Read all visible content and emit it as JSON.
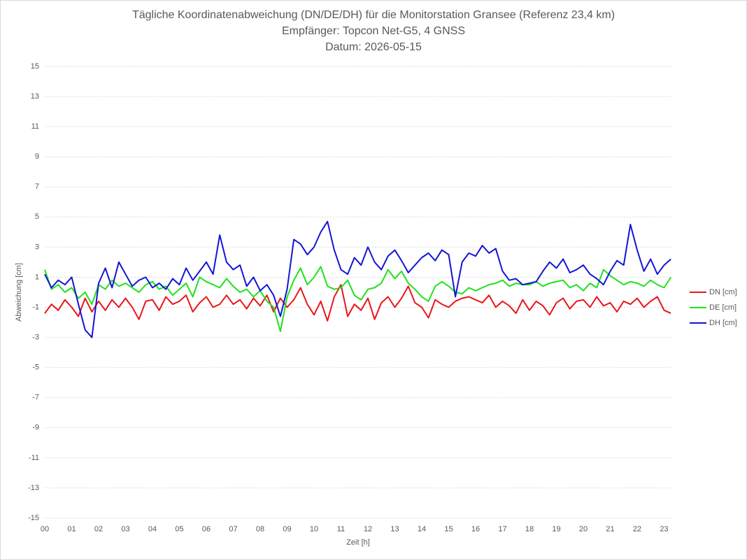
{
  "chart_data": {
    "type": "line",
    "title_lines": [
      "Tägliche Koordinatenabweichung (DN/DE/DH) für die Monitorstation Gransee (Referenz 23,4 km)",
      "Empfänger: Topcon Net-G5, 4 GNSS",
      "Datum: 2026-05-15"
    ],
    "x_label": "Zeit [h]",
    "y_label": "Abweichung [cm]",
    "x": [
      0,
      0.25,
      0.5,
      0.75,
      1,
      1.25,
      1.5,
      1.75,
      2,
      2.25,
      2.5,
      2.75,
      3,
      3.25,
      3.5,
      3.75,
      4,
      4.25,
      4.5,
      4.75,
      5,
      5.25,
      5.5,
      5.75,
      6,
      6.25,
      6.5,
      6.75,
      7,
      7.25,
      7.5,
      7.75,
      8,
      8.25,
      8.5,
      8.75,
      9,
      9.25,
      9.5,
      9.75,
      10,
      10.25,
      10.5,
      10.75,
      11,
      11.25,
      11.5,
      11.75,
      12,
      12.25,
      12.5,
      12.75,
      13,
      13.25,
      13.5,
      13.75,
      14,
      14.25,
      14.5,
      14.75,
      15,
      15.25,
      15.5,
      15.75,
      16,
      16.25,
      16.5,
      16.75,
      17,
      17.25,
      17.5,
      17.75,
      18,
      18.25,
      18.5,
      18.75,
      19,
      19.25,
      19.5,
      19.75,
      20,
      20.25,
      20.5,
      20.75,
      21,
      21.25,
      21.5,
      21.75,
      22,
      22.25,
      22.5,
      22.75,
      23,
      23.25
    ],
    "series": [
      {
        "name": "DN [cm]",
        "color": "#e8161b",
        "values": [
          -1.4,
          -0.8,
          -1.2,
          -0.5,
          -1.0,
          -1.6,
          -0.4,
          -1.3,
          -0.6,
          -1.2,
          -0.5,
          -1.0,
          -0.4,
          -1.0,
          -1.8,
          -0.6,
          -0.5,
          -1.2,
          -0.3,
          -0.8,
          -0.6,
          -0.2,
          -1.3,
          -0.7,
          -0.3,
          -1.0,
          -0.8,
          -0.2,
          -0.8,
          -0.5,
          -1.1,
          -0.4,
          -0.9,
          -0.2,
          -1.3,
          -0.4,
          -1.0,
          -0.5,
          0.3,
          -0.8,
          -1.5,
          -0.6,
          -1.9,
          -0.3,
          0.5,
          -1.6,
          -0.8,
          -1.2,
          -0.4,
          -1.8,
          -0.7,
          -0.3,
          -1.0,
          -0.4,
          0.4,
          -0.7,
          -1.0,
          -1.7,
          -0.5,
          -0.8,
          -1.0,
          -0.6,
          -0.4,
          -0.3,
          -0.5,
          -0.7,
          -0.2,
          -1.0,
          -0.6,
          -0.9,
          -1.4,
          -0.5,
          -1.2,
          -0.6,
          -0.9,
          -1.5,
          -0.7,
          -0.4,
          -1.1,
          -0.6,
          -0.5,
          -1.0,
          -0.3,
          -0.9,
          -0.7,
          -1.3,
          -0.6,
          -0.8,
          -0.4,
          -1.0,
          -0.6,
          -0.3,
          -1.2,
          -1.4
        ]
      },
      {
        "name": "DE [cm]",
        "color": "#22e01e",
        "values": [
          1.5,
          0.2,
          0.5,
          0.0,
          0.3,
          -0.4,
          0.0,
          -0.8,
          0.5,
          0.2,
          0.8,
          0.4,
          0.6,
          0.3,
          0.0,
          0.5,
          0.7,
          0.2,
          0.4,
          -0.2,
          0.2,
          0.6,
          -0.3,
          1.0,
          0.7,
          0.5,
          0.3,
          0.9,
          0.4,
          0.0,
          0.2,
          -0.3,
          0.1,
          -0.6,
          -1.0,
          -2.6,
          -0.3,
          0.8,
          1.6,
          0.5,
          1.0,
          1.7,
          0.4,
          0.2,
          0.3,
          0.8,
          -0.2,
          -0.5,
          0.2,
          0.3,
          0.6,
          1.5,
          0.9,
          1.4,
          0.6,
          0.2,
          -0.3,
          -0.6,
          0.4,
          0.7,
          0.4,
          0.0,
          -0.1,
          0.3,
          0.1,
          0.3,
          0.5,
          0.6,
          0.8,
          0.4,
          0.6,
          0.5,
          0.5,
          0.7,
          0.4,
          0.6,
          0.7,
          0.8,
          0.3,
          0.5,
          0.1,
          0.6,
          0.3,
          1.5,
          1.1,
          0.8,
          0.5,
          0.7,
          0.6,
          0.4,
          0.8,
          0.5,
          0.3,
          1.0
        ]
      },
      {
        "name": "DH [cm]",
        "color": "#1414d6",
        "values": [
          1.2,
          0.3,
          0.8,
          0.5,
          1.0,
          -0.8,
          -2.5,
          -3.0,
          0.6,
          1.6,
          0.3,
          2.0,
          1.2,
          0.4,
          0.8,
          1.0,
          0.3,
          0.6,
          0.2,
          0.9,
          0.5,
          1.6,
          0.8,
          1.4,
          2.0,
          1.2,
          3.8,
          2.0,
          1.5,
          1.8,
          0.4,
          1.0,
          0.1,
          0.5,
          -0.2,
          -1.6,
          0.2,
          3.5,
          3.2,
          2.5,
          3.0,
          4.0,
          4.7,
          2.8,
          1.5,
          1.2,
          2.3,
          1.8,
          3.0,
          2.0,
          1.5,
          2.4,
          2.8,
          2.1,
          1.3,
          1.8,
          2.3,
          2.6,
          2.1,
          2.8,
          2.5,
          -0.3,
          2.0,
          2.6,
          2.4,
          3.1,
          2.6,
          2.9,
          1.4,
          0.8,
          0.9,
          0.5,
          0.6,
          0.7,
          1.4,
          2.0,
          1.6,
          2.2,
          1.3,
          1.5,
          1.8,
          1.2,
          0.9,
          0.5,
          1.4,
          2.1,
          1.8,
          4.5,
          2.8,
          1.4,
          2.2,
          1.2,
          1.8,
          2.2
        ]
      }
    ],
    "xlim": [
      0,
      23.3
    ],
    "xticks": [
      {
        "value": 0,
        "label": "00"
      },
      {
        "value": 1,
        "label": "01"
      },
      {
        "value": 2,
        "label": "02"
      },
      {
        "value": 3,
        "label": "03"
      },
      {
        "value": 4,
        "label": "04"
      },
      {
        "value": 5,
        "label": "05"
      },
      {
        "value": 6,
        "label": "06"
      },
      {
        "value": 7,
        "label": "07"
      },
      {
        "value": 8,
        "label": "08"
      },
      {
        "value": 9,
        "label": "09"
      },
      {
        "value": 10,
        "label": "10"
      },
      {
        "value": 11,
        "label": "11"
      },
      {
        "value": 12,
        "label": "12"
      },
      {
        "value": 13,
        "label": "13"
      },
      {
        "value": 14,
        "label": "14"
      },
      {
        "value": 15,
        "label": "15"
      },
      {
        "value": 16,
        "label": "16"
      },
      {
        "value": 17,
        "label": "17"
      },
      {
        "value": 18,
        "label": "18"
      },
      {
        "value": 19,
        "label": "19"
      },
      {
        "value": 20,
        "label": "20"
      },
      {
        "value": 21,
        "label": "21"
      },
      {
        "value": 22,
        "label": "22"
      },
      {
        "value": 23,
        "label": "23"
      }
    ],
    "ylim": [
      -15,
      15
    ],
    "yticks": [
      -15,
      -13,
      -11,
      -9,
      -7,
      -5,
      -3,
      -1,
      1,
      3,
      5,
      7,
      9,
      11,
      13,
      15
    ],
    "grid": true,
    "legend": "right"
  }
}
